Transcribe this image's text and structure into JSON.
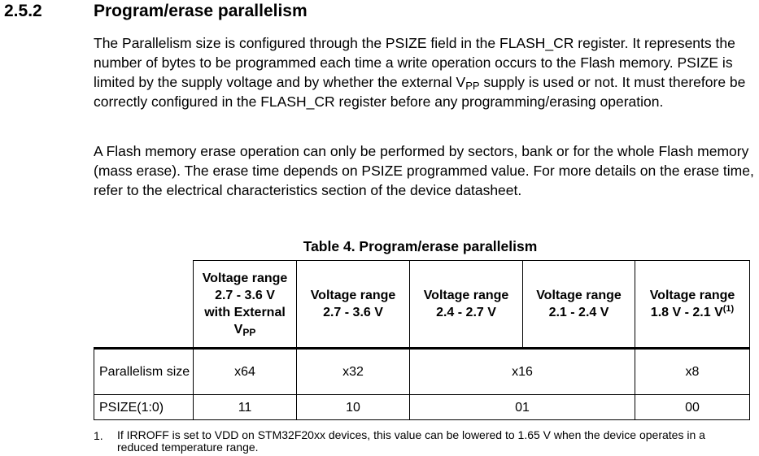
{
  "section": {
    "number": "2.5.2",
    "title": "Program/erase parallelism"
  },
  "paragraph1": {
    "before_vpp": "The Parallelism size is configured through the PSIZE field in the FLASH_CR register. It represents the number of bytes to be programmed each time a write operation occurs to the Flash memory. PSIZE is limited by the supply voltage and by whether the external V",
    "vpp_subscript": "PP",
    "after_vpp": " supply is used or not. It must therefore be correctly configured in the FLASH_CR register before any programming/erasing operation."
  },
  "paragraph2": "A Flash memory erase operation can only be performed by sectors, bank or for the whole Flash memory (mass erase). The erase time depends on PSIZE programmed value. For more details on the erase time, refer to the electrical characteristics section of the device datasheet.",
  "table": {
    "caption": "Table 4. Program/erase parallelism",
    "headers": {
      "col1": {
        "line1": "Voltage range",
        "line2": "2.7 - 3.6 V",
        "line3": "with External",
        "line4_main": "V",
        "line4_sub": "PP"
      },
      "col2": {
        "line1": "Voltage range",
        "line2": "2.7 - 3.6 V"
      },
      "col3": {
        "line1": "Voltage range",
        "line2": "2.4 - 2.7 V"
      },
      "col4": {
        "line1": "Voltage range",
        "line2": "2.1 - 2.4 V"
      },
      "col5": {
        "line1": "Voltage range",
        "line2": "1.8 V - 2.1 V",
        "note_ref": "(1)"
      }
    },
    "rows": [
      {
        "label": "Parallelism size",
        "cells": [
          "x64",
          "x32",
          "x16",
          "x8"
        ]
      },
      {
        "label": "PSIZE(1:0)",
        "cells": [
          "11",
          "10",
          "01",
          "00"
        ]
      }
    ]
  },
  "footnote": {
    "number": "1.",
    "text": "If IRROFF is set to VDD on STM32F20xx devices, this value can be lowered to 1.65 V when the device operates in a reduced temperature range."
  }
}
